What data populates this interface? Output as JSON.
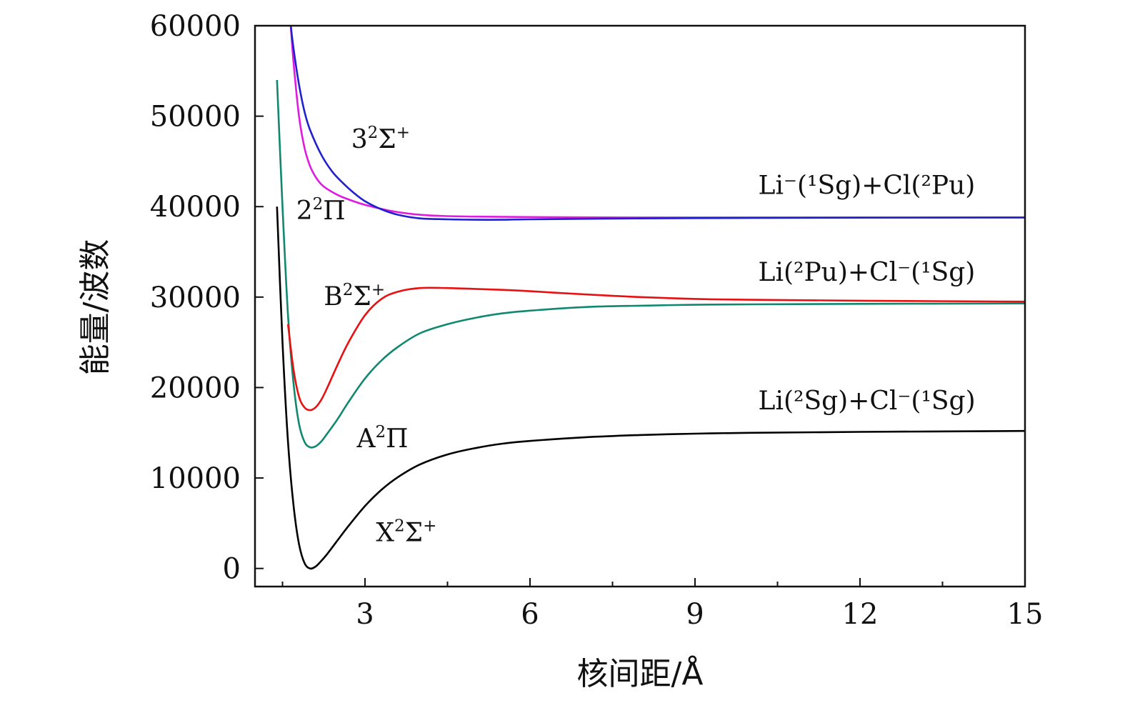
{
  "chart_data": {
    "type": "line",
    "xlabel": "核间距/Å",
    "ylabel": "能量/波数",
    "xlim": [
      1.0,
      15.0
    ],
    "ylim": [
      -2000,
      60000
    ],
    "x_ticks": [
      3,
      6,
      9,
      12,
      15
    ],
    "x_tick_labels": [
      "3",
      "6",
      "9",
      "12",
      "15"
    ],
    "x_minor_ticks": [
      1.5,
      4.5,
      7.5,
      10.5,
      13.5
    ],
    "y_ticks": [
      0,
      10000,
      20000,
      30000,
      40000,
      50000,
      60000
    ],
    "y_tick_labels": [
      "0",
      "10000",
      "20000",
      "30000",
      "40000",
      "50000",
      "60000"
    ],
    "grid": false,
    "legend": "none",
    "series": [
      {
        "name": "X²Σ⁺",
        "color": "#000000",
        "x": [
          1.4,
          1.5,
          1.6,
          1.7,
          1.8,
          1.9,
          2.0,
          2.1,
          2.2,
          2.3,
          2.5,
          2.7,
          3.0,
          3.3,
          3.6,
          4.0,
          4.5,
          5.0,
          5.5,
          6.0,
          7.0,
          8.0,
          9.0,
          10.0,
          12.0,
          15.0
        ],
        "y": [
          40000,
          25000,
          14000,
          7000,
          2700,
          600,
          0,
          200,
          800,
          1500,
          3100,
          4700,
          6900,
          8700,
          10100,
          11500,
          12600,
          13300,
          13800,
          14100,
          14500,
          14750,
          14900,
          15000,
          15100,
          15200
        ]
      },
      {
        "name": "A²Π",
        "color": "#108870",
        "x": [
          1.4,
          1.5,
          1.6,
          1.7,
          1.8,
          1.9,
          2.0,
          2.1,
          2.2,
          2.3,
          2.5,
          2.7,
          3.0,
          3.3,
          3.6,
          4.0,
          4.5,
          5.0,
          5.5,
          6.0,
          7.0,
          8.0,
          9.0,
          10.0,
          12.0,
          15.0
        ],
        "y": [
          54000,
          40000,
          28000,
          20500,
          16000,
          14000,
          13400,
          13500,
          14000,
          14800,
          16500,
          18400,
          21000,
          23000,
          24500,
          26000,
          27000,
          27700,
          28200,
          28500,
          28900,
          29050,
          29150,
          29200,
          29250,
          29300
        ]
      },
      {
        "name": "B²Σ⁺",
        "color": "#e81010",
        "x": [
          1.6,
          1.7,
          1.8,
          1.9,
          2.0,
          2.1,
          2.2,
          2.3,
          2.5,
          2.7,
          3.0,
          3.3,
          3.6,
          4.0,
          4.5,
          5.0,
          5.5,
          6.0,
          7.0,
          8.0,
          9.0,
          10.0,
          12.0,
          15.0
        ],
        "y": [
          27000,
          22000,
          19000,
          17800,
          17500,
          17800,
          18600,
          19800,
          22500,
          25000,
          28000,
          29800,
          30600,
          31000,
          31000,
          30900,
          30800,
          30650,
          30300,
          30000,
          29800,
          29700,
          29600,
          29500
        ]
      },
      {
        "name": "2²Π",
        "color": "#e01ae0",
        "x": [
          1.65,
          1.7,
          1.8,
          1.9,
          2.0,
          2.1,
          2.2,
          2.3,
          2.5,
          2.7,
          3.0,
          3.5,
          4.0,
          4.5,
          5.0,
          6.0,
          8.0,
          10.0,
          12.0,
          15.0
        ],
        "y": [
          60000,
          56000,
          50000,
          46500,
          44500,
          43300,
          42500,
          42000,
          41300,
          40800,
          40200,
          39500,
          39100,
          38950,
          38900,
          38850,
          38800,
          38800,
          38800,
          38800
        ]
      },
      {
        "name": "3²Σ⁺",
        "color": "#2020d0",
        "x": [
          1.65,
          1.7,
          1.8,
          1.9,
          2.0,
          2.2,
          2.4,
          2.6,
          2.8,
          3.0,
          3.3,
          3.6,
          4.0,
          4.5,
          5.0,
          5.5,
          6.0,
          8.0,
          10.0,
          12.0,
          15.0
        ],
        "y": [
          60000,
          57500,
          53500,
          50500,
          48500,
          45800,
          43900,
          42600,
          41500,
          40600,
          39700,
          39100,
          38700,
          38600,
          38550,
          38550,
          38600,
          38700,
          38750,
          38780,
          38800
        ]
      }
    ],
    "annotations": [
      {
        "base": "3",
        "sup": "2",
        "rest": "Σ",
        "sup2": "+",
        "x": 2.75,
        "y": 46500
      },
      {
        "base": "2",
        "sup": "2",
        "rest": "Π",
        "sup2": "",
        "x": 1.75,
        "y": 38600
      },
      {
        "base": "B",
        "sup": "2",
        "rest": "Σ",
        "sup2": "+",
        "x": 2.25,
        "y": 29100
      },
      {
        "base": "A",
        "sup": "2",
        "rest": "Π",
        "sup2": "",
        "x": 2.85,
        "y": 13400
      },
      {
        "base": "X",
        "sup": "2",
        "rest": "Σ",
        "sup2": "+",
        "x": 3.2,
        "y": 3000
      }
    ],
    "asymptote_labels": [
      {
        "text": "Li⁻(¹Sg)+Cl(²Pu)",
        "x": 10.15,
        "y": 41400
      },
      {
        "text": "Li(²Pu)+Cl⁻(¹Sg)",
        "x": 10.15,
        "y": 31800
      },
      {
        "text": "Li(²Sg)+Cl⁻(¹Sg)",
        "x": 10.15,
        "y": 17600
      }
    ]
  }
}
